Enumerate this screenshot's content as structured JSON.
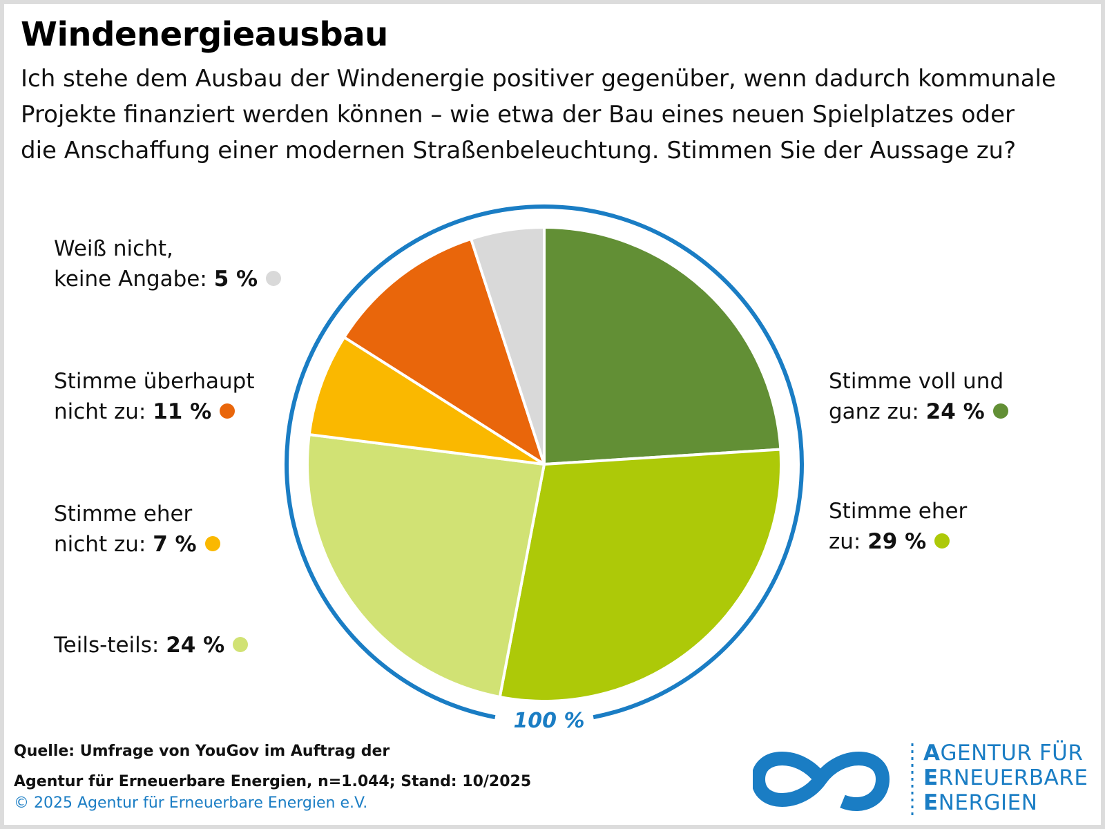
{
  "header": {
    "title": "Windenergieausbau",
    "subtitle_lines": [
      "Ich stehe dem Ausbau der Windenergie positiver gegenüber, wenn dadurch kommunale",
      "Projekte finanziert werden können – wie etwa der Bau eines neuen Spielplatzes oder",
      "die Anschaffung einer modernen Straßenbeleuchtung. Stimmen Sie der Aussage zu?"
    ]
  },
  "chart_data": {
    "type": "pie",
    "total_label": "100 %",
    "slices": [
      {
        "line1": "Stimme voll und",
        "line2": "ganz zu: ",
        "value_label": "24 %",
        "value": 24,
        "color": "#628f35"
      },
      {
        "line1": "Stimme eher",
        "line2": "zu: ",
        "value_label": "29 %",
        "value": 29,
        "color": "#adc908"
      },
      {
        "line1": "",
        "line2": "Teils-teils: ",
        "value_label": "24 %",
        "value": 24,
        "color": "#d1e274"
      },
      {
        "line1": "Stimme eher",
        "line2": "nicht zu: ",
        "value_label": "7 %",
        "value": 7,
        "color": "#fab800"
      },
      {
        "line1": "Stimme überhaupt",
        "line2": "nicht zu: ",
        "value_label": "11 %",
        "value": 11,
        "color": "#e9660b"
      },
      {
        "line1": "Weiß nicht,",
        "line2": "keine Angabe: ",
        "value_label": "5 %",
        "value": 5,
        "color": "#d9d9d9"
      }
    ],
    "ring_color": "#1a7dc4"
  },
  "footer": {
    "source_line1": "Quelle: Umfrage von YouGov im Auftrag der",
    "source_line2": "Agentur für Erneuerbare Energien, n=1.044; Stand: 10/2025",
    "copyright": "© 2025 Agentur für Erneuerbare Energien e.V."
  },
  "logo": {
    "line1_initial": "A",
    "line1_rest": "GENTUR FÜR",
    "line2_initial": "E",
    "line2_rest": "RNEUERBARE",
    "line3_initial": "E",
    "line3_rest": "NERGIEN"
  }
}
